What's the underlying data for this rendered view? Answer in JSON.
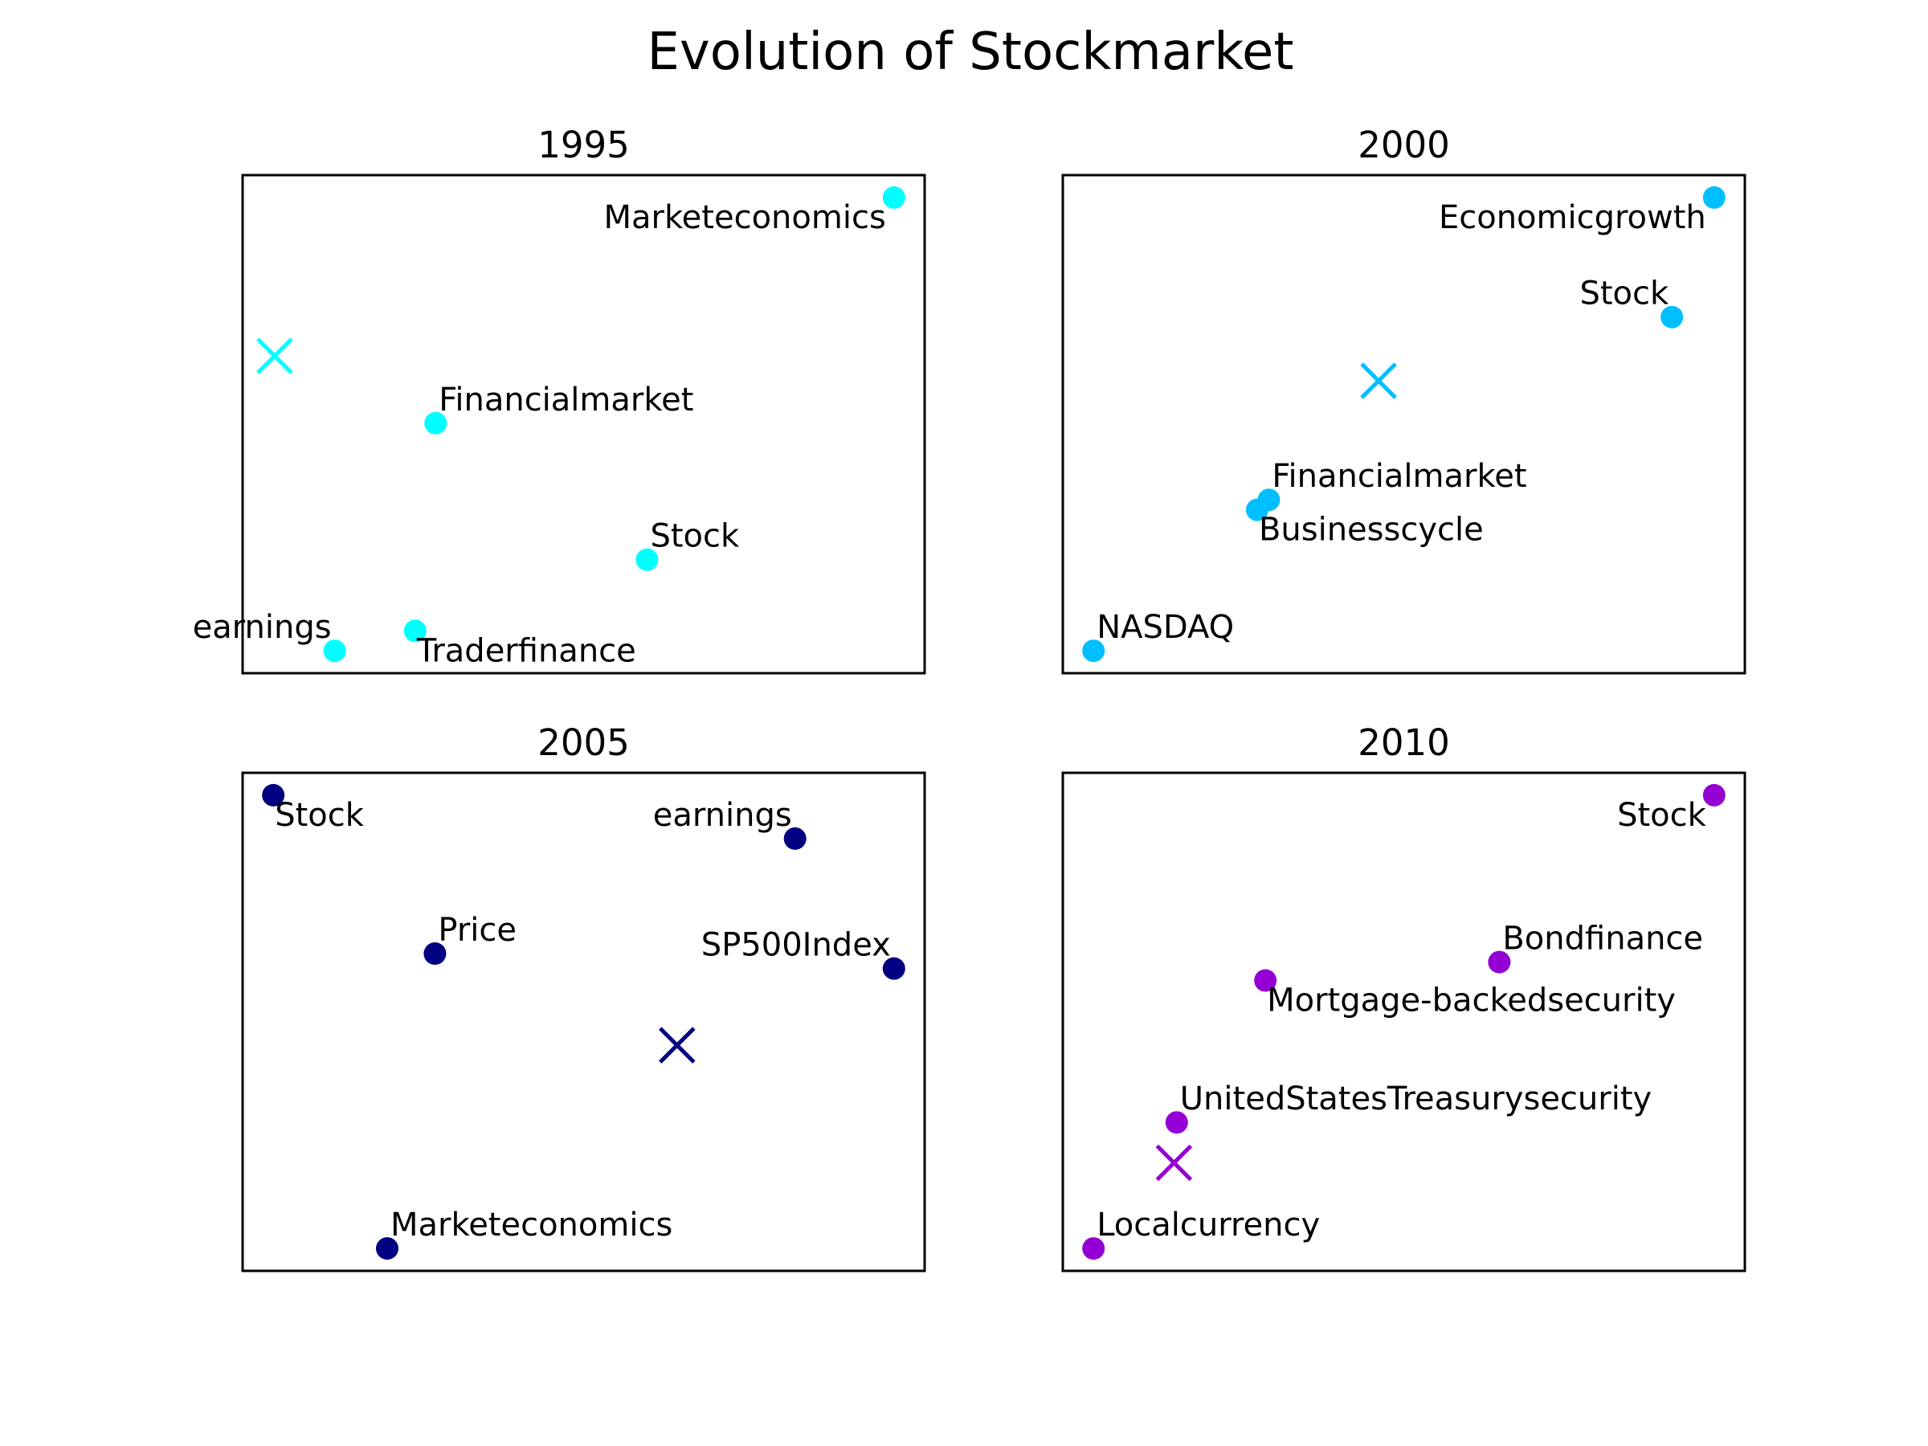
{
  "title": "Evolution of Stockmarket",
  "chart_data": [
    {
      "type": "scatter",
      "title": "1995",
      "color": "#00FFFF",
      "grid": false,
      "points": [
        {
          "label": "Marketeconomics",
          "x": 0.955,
          "y": 0.955,
          "label_pos": "below-left"
        },
        {
          "label": "Financialmarket",
          "x": 0.283,
          "y": 0.502,
          "label_pos": "above-right"
        },
        {
          "label": "Stock",
          "x": 0.593,
          "y": 0.228,
          "label_pos": "above-right"
        },
        {
          "label": "earnings",
          "x": 0.135,
          "y": 0.045,
          "label_pos": "above-left"
        },
        {
          "label": "Traderfinance",
          "x": 0.253,
          "y": 0.085,
          "label_pos": "below-right"
        }
      ],
      "centroid": {
        "x": 0.047,
        "y": 0.637
      }
    },
    {
      "type": "scatter",
      "title": "2000",
      "color": "#00BFFF",
      "grid": false,
      "points": [
        {
          "label": "Economicgrowth",
          "x": 0.955,
          "y": 0.955,
          "label_pos": "below-left"
        },
        {
          "label": "Stock",
          "x": 0.893,
          "y": 0.715,
          "label_pos": "above-left"
        },
        {
          "label": "Financialmarket",
          "x": 0.302,
          "y": 0.348,
          "label_pos": "above-right"
        },
        {
          "label": "Businesscycle",
          "x": 0.285,
          "y": 0.328,
          "label_pos": "below-right"
        },
        {
          "label": "NASDAQ",
          "x": 0.045,
          "y": 0.045,
          "label_pos": "above-right"
        }
      ],
      "centroid": {
        "x": 0.463,
        "y": 0.587
      }
    },
    {
      "type": "scatter",
      "title": "2005",
      "color": "#000080",
      "grid": false,
      "points": [
        {
          "label": "Stock",
          "x": 0.045,
          "y": 0.955,
          "label_pos": "below-right"
        },
        {
          "label": "earnings",
          "x": 0.81,
          "y": 0.868,
          "label_pos": "above-left"
        },
        {
          "label": "Price",
          "x": 0.282,
          "y": 0.637,
          "label_pos": "above-right"
        },
        {
          "label": "SP500Index",
          "x": 0.955,
          "y": 0.607,
          "label_pos": "above-left"
        },
        {
          "label": "Marketeconomics",
          "x": 0.212,
          "y": 0.045,
          "label_pos": "above-right"
        }
      ],
      "centroid": {
        "x": 0.637,
        "y": 0.453
      }
    },
    {
      "type": "scatter",
      "title": "2010",
      "color": "#9400D3",
      "grid": false,
      "points": [
        {
          "label": "Stock",
          "x": 0.955,
          "y": 0.955,
          "label_pos": "below-left"
        },
        {
          "label": "Bondfinance",
          "x": 0.64,
          "y": 0.62,
          "label_pos": "above-right"
        },
        {
          "label": "Mortgage-backedsecurity",
          "x": 0.297,
          "y": 0.583,
          "label_pos": "below-right"
        },
        {
          "label": "UnitedStatesTreasurysecurity",
          "x": 0.167,
          "y": 0.298,
          "label_pos": "above-right"
        },
        {
          "label": "Localcurrency",
          "x": 0.045,
          "y": 0.045,
          "label_pos": "above-right"
        }
      ],
      "centroid": {
        "x": 0.163,
        "y": 0.217
      }
    }
  ]
}
